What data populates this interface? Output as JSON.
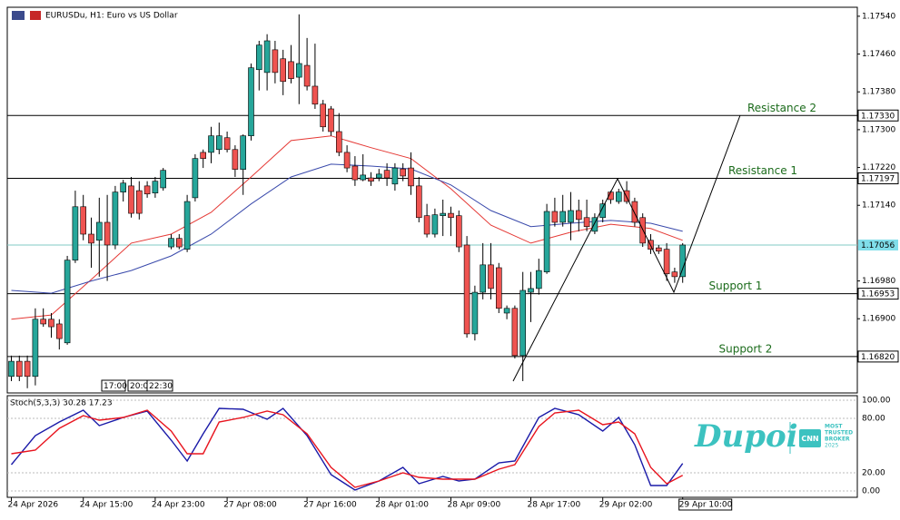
{
  "chart_data": [
    {
      "type": "candlestick",
      "title": "EURUSDu, H1: Euro vs US Dollar",
      "up_color": "#26a69a",
      "down_color": "#ef5350",
      "open": [
        1.16778,
        1.1681,
        1.1681,
        1.16778,
        1.16899,
        1.16899,
        1.16889,
        1.16849,
        1.17024,
        1.17137,
        1.17079,
        1.17066,
        1.17104,
        1.17056,
        1.17168,
        1.17181,
        1.17171,
        1.17181,
        1.17166,
        1.17177,
        1.17052,
        1.1707,
        1.17047,
        1.17156,
        1.17252,
        1.17252,
        1.17258,
        1.17283,
        1.17258,
        1.17216,
        1.17287,
        1.17427,
        1.17421,
        1.17469,
        1.1745,
        1.17444,
        1.17411,
        1.17436,
        1.17392,
        1.17354,
        1.17344,
        1.17296,
        1.17252,
        1.17223,
        1.17194,
        1.17198,
        1.17198,
        1.17214,
        1.17185,
        1.17217,
        1.17219,
        1.17181,
        1.17118,
        1.17079,
        1.17118,
        1.17123,
        1.17118,
        1.17056,
        1.16868,
        1.16956,
        1.17014,
        1.17008,
        1.16912,
        1.16922,
        1.16822,
        1.16956,
        1.16964,
        1.16999,
        1.17127,
        1.17104,
        1.17104,
        1.17129,
        1.17114,
        1.17085,
        1.17114,
        1.17168,
        1.17148,
        1.17171,
        1.17148,
        1.17114,
        1.17066,
        1.1705,
        1.17047,
        1.16999,
        1.16989
      ],
      "high": [
        1.16822,
        1.16822,
        1.16822,
        1.16922,
        1.16922,
        1.16912,
        1.16899,
        1.17033,
        1.17171,
        1.17162,
        1.17114,
        1.17156,
        1.17162,
        1.17181,
        1.17194,
        1.172,
        1.17191,
        1.17191,
        1.172,
        1.17219,
        1.17079,
        1.17079,
        1.17162,
        1.17248,
        1.17258,
        1.17306,
        1.17315,
        1.17296,
        1.17267,
        1.1729,
        1.1744,
        1.17488,
        1.17502,
        1.17488,
        1.17469,
        1.17479,
        1.17544,
        1.17494,
        1.17482,
        1.17363,
        1.1735,
        1.17335,
        1.17267,
        1.17244,
        1.17248,
        1.1721,
        1.17217,
        1.17229,
        1.17229,
        1.17229,
        1.17252,
        1.172,
        1.17143,
        1.17133,
        1.17152,
        1.17137,
        1.17129,
        1.17075,
        1.1697,
        1.1706,
        1.1706,
        1.17018,
        1.16928,
        1.16928,
        1.16999,
        1.16999,
        1.17027,
        1.17143,
        1.17156,
        1.17162,
        1.17168,
        1.17152,
        1.17152,
        1.17123,
        1.17152,
        1.17171,
        1.17175,
        1.17191,
        1.17156,
        1.17123,
        1.17079,
        1.17056,
        1.1706,
        1.17008,
        1.1706
      ],
      "low": [
        1.16768,
        1.16768,
        1.16753,
        1.16759,
        1.16883,
        1.1686,
        1.16835,
        1.16845,
        1.17018,
        1.17066,
        1.17008,
        1.16989,
        1.1698,
        1.17047,
        1.17148,
        1.17114,
        1.1711,
        1.17156,
        1.17156,
        1.17171,
        1.17047,
        1.17047,
        1.17041,
        1.17148,
        1.17219,
        1.17229,
        1.17248,
        1.17252,
        1.172,
        1.17162,
        1.17277,
        1.17383,
        1.17383,
        1.17398,
        1.17373,
        1.17398,
        1.17354,
        1.17383,
        1.17344,
        1.17296,
        1.17287,
        1.17244,
        1.1721,
        1.17181,
        1.17191,
        1.17181,
        1.17191,
        1.17181,
        1.17171,
        1.17191,
        1.17162,
        1.17104,
        1.17072,
        1.17072,
        1.17075,
        1.17075,
        1.17041,
        1.1686,
        1.16854,
        1.16941,
        1.16941,
        1.16912,
        1.16899,
        1.16816,
        1.16768,
        1.16893,
        1.16951,
        1.16995,
        1.17095,
        1.17095,
        1.17066,
        1.17085,
        1.17085,
        1.17079,
        1.17104,
        1.17143,
        1.17143,
        1.17143,
        1.17095,
        1.17052,
        1.17037,
        1.17037,
        1.1698,
        1.16976,
        1.16976
      ],
      "close": [
        1.1681,
        1.16778,
        1.16778,
        1.16899,
        1.16889,
        1.16883,
        1.16858,
        1.17024,
        1.17137,
        1.17079,
        1.1706,
        1.17104,
        1.17056,
        1.17168,
        1.17187,
        1.17123,
        1.17123,
        1.17164,
        1.17191,
        1.17214,
        1.1707,
        1.17052,
        1.17148,
        1.17239,
        1.17239,
        1.17287,
        1.17287,
        1.17258,
        1.17216,
        1.17287,
        1.17431,
        1.17479,
        1.17488,
        1.17421,
        1.17402,
        1.17408,
        1.1744,
        1.17392,
        1.17354,
        1.17306,
        1.17296,
        1.17252,
        1.17219,
        1.17194,
        1.17204,
        1.17191,
        1.17206,
        1.17198,
        1.17219,
        1.17202,
        1.17181,
        1.17114,
        1.17079,
        1.1712,
        1.17123,
        1.17114,
        1.17052,
        1.16868,
        1.16956,
        1.17014,
        1.16964,
        1.16922,
        1.16922,
        1.16822,
        1.1696,
        1.16964,
        1.17002,
        1.17127,
        1.17104,
        1.17127,
        1.17129,
        1.1711,
        1.17095,
        1.17114,
        1.17143,
        1.17152,
        1.17168,
        1.17148,
        1.17104,
        1.1706,
        1.17047,
        1.17043,
        1.16995,
        1.16989,
        1.17056
      ],
      "xticks": [
        {
          "value": 0,
          "label": "24 Apr 2026"
        },
        {
          "value": 9,
          "label": "24 Apr 15:00"
        },
        {
          "value": 18,
          "label": "24 Apr 23:00"
        },
        {
          "value": 27,
          "label": "27 Apr 08:00"
        },
        {
          "value": 37,
          "label": "27 Apr 16:00"
        },
        {
          "value": 46,
          "label": "28 Apr 01:00"
        },
        {
          "value": 55,
          "label": "28 Apr 09:00"
        },
        {
          "value": 65,
          "label": "28 Apr 17:00"
        },
        {
          "value": 74,
          "label": "29 Apr 02:00"
        },
        {
          "value": 84,
          "label": "29 Apr 10:00"
        }
      ],
      "ylim": [
        1.16743,
        1.17559
      ],
      "yticks": [
        {
          "value": 1.1754,
          "label": "1.17540"
        },
        {
          "value": 1.1746,
          "label": "1.17460"
        },
        {
          "value": 1.1738,
          "label": "1.17380"
        },
        {
          "value": 1.173,
          "label": "1.17300"
        },
        {
          "value": 1.1722,
          "label": "1.17220"
        },
        {
          "value": 1.1714,
          "label": "1.17140"
        },
        {
          "value": 1.1698,
          "label": "1.16980"
        },
        {
          "value": 1.169,
          "label": "1.16900"
        }
      ],
      "lines": [
        {
          "color": "#e53935",
          "x": [
            0,
            5,
            10,
            15,
            20,
            25,
            30,
            35,
            40,
            45,
            50,
            55,
            60,
            65,
            70,
            75,
            80,
            84
          ],
          "values": [
            1.16899,
            1.16908,
            1.16983,
            1.1706,
            1.17079,
            1.17125,
            1.172,
            1.17277,
            1.17287,
            1.17262,
            1.17239,
            1.17175,
            1.17098,
            1.1706,
            1.17083,
            1.171,
            1.17091,
            1.17066
          ]
        },
        {
          "color": "#3949ab",
          "x": [
            0,
            5,
            10,
            15,
            20,
            25,
            30,
            35,
            40,
            45,
            50,
            55,
            60,
            65,
            70,
            75,
            80,
            84
          ],
          "values": [
            1.1696,
            1.16954,
            1.1698,
            1.17002,
            1.17033,
            1.17079,
            1.17143,
            1.172,
            1.17227,
            1.17223,
            1.17217,
            1.17183,
            1.17129,
            1.17095,
            1.17102,
            1.17108,
            1.17102,
            1.17085
          ]
        }
      ],
      "levels": [
        {
          "name": "Resistance 2",
          "price": {
            "value": 1.1733,
            "label": "1.17330"
          },
          "color": "#000000"
        },
        {
          "name": "Resistance 1",
          "price": 1.17197,
          "color": "#000000"
        },
        {
          "price": 1.17056,
          "color": "#80cbc4",
          "label_fill": "#80deea"
        },
        {
          "name": "Support 1",
          "price": 1.16953,
          "color": "#000000"
        },
        {
          "name": "Support 2",
          "price": {
            "value": 1.1682,
            "label": "1.16820"
          },
          "color": "#000000"
        }
      ],
      "session_labels": [
        "17:00",
        "20:0",
        "22:30"
      ]
    },
    {
      "type": "line",
      "title": "Stoch(5,3,3) 30.28 17.23",
      "ylim": [
        -7,
        104
      ],
      "yticks": [
        {
          "value": 100,
          "label": "100.00"
        },
        {
          "value": 80,
          "label": "80.00"
        },
        {
          "value": 20,
          "label": "20.00"
        },
        {
          "value": 0,
          "label": "0.00"
        }
      ],
      "grid": true,
      "series": [
        {
          "color": "#1a1aa8",
          "x": [
            0,
            3,
            6,
            9,
            11,
            14,
            17,
            20,
            22,
            24,
            26,
            29,
            32,
            34,
            37,
            40,
            43,
            46,
            49,
            51,
            54,
            56,
            58,
            61,
            63,
            66,
            68,
            71,
            74,
            76,
            78,
            80,
            82,
            84
          ],
          "values": [
            29,
            61,
            76,
            89,
            72,
            81,
            88,
            56,
            33,
            63,
            91,
            90,
            79,
            91,
            61,
            18,
            1,
            11,
            26,
            8,
            16,
            11,
            13,
            31,
            33,
            81,
            91,
            84,
            66,
            81,
            51,
            6,
            6,
            30.28
          ]
        },
        {
          "color": "#e8141e",
          "x": [
            0,
            3,
            6,
            9,
            11,
            14,
            17,
            20,
            22,
            24,
            26,
            29,
            32,
            34,
            37,
            40,
            43,
            46,
            49,
            51,
            54,
            56,
            58,
            61,
            63,
            66,
            68,
            71,
            74,
            76,
            78,
            80,
            82,
            84
          ],
          "values": [
            41,
            45,
            69,
            83,
            78,
            81,
            89,
            66,
            41,
            41,
            76,
            81,
            88,
            84,
            63,
            26,
            4,
            11,
            20,
            15,
            13,
            13,
            13,
            24,
            29,
            71,
            86,
            89,
            73,
            76,
            63,
            26,
            8,
            17.23
          ]
        }
      ]
    }
  ],
  "brand": {
    "name": "Dupoin",
    "badge": "CNN",
    "tagline": [
      "MOST",
      "TRUSTED",
      "BROKER",
      "2025"
    ]
  }
}
